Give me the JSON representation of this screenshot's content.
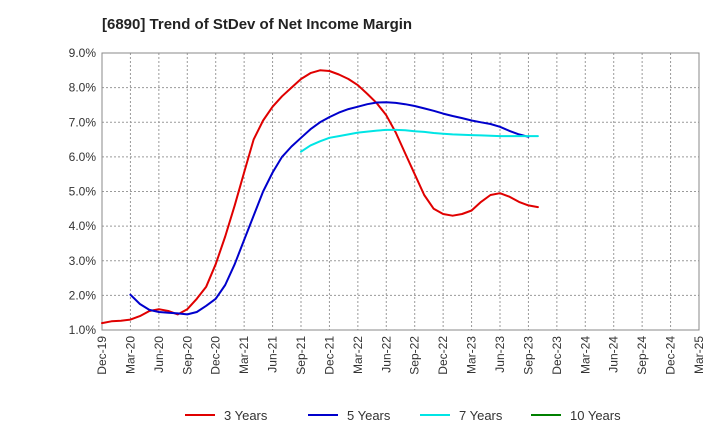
{
  "chart_data": {
    "type": "line",
    "title": "[6890]  Trend of StDev of Net Income Margin",
    "xlabel": "",
    "ylabel": "",
    "x_ticks": [
      "Dec-19",
      "Mar-20",
      "Jun-20",
      "Sep-20",
      "Dec-20",
      "Mar-21",
      "Jun-21",
      "Sep-21",
      "Dec-21",
      "Mar-22",
      "Jun-22",
      "Sep-22",
      "Dec-22",
      "Mar-23",
      "Jun-23",
      "Sep-23",
      "Dec-23",
      "Mar-24",
      "Jun-24",
      "Sep-24",
      "Dec-24",
      "Mar-25"
    ],
    "y_ticks": [
      "1.0%",
      "2.0%",
      "3.0%",
      "4.0%",
      "5.0%",
      "6.0%",
      "7.0%",
      "8.0%",
      "9.0%"
    ],
    "ylim": [
      1.0,
      9.0
    ],
    "y_unit": "%",
    "grid": true,
    "legend_position": "bottom",
    "series": [
      {
        "name": "3 Years",
        "color": "#e00000",
        "start_index": 0,
        "values": [
          1.2,
          1.25,
          1.27,
          1.3,
          1.4,
          1.55,
          1.6,
          1.55,
          1.45,
          1.6,
          1.9,
          2.25,
          2.9,
          3.7,
          4.6,
          5.55,
          6.5,
          7.05,
          7.45,
          7.75,
          8.0,
          8.25,
          8.42,
          8.5,
          8.48,
          8.38,
          8.25,
          8.07,
          7.82,
          7.55,
          7.2,
          6.7,
          6.1,
          5.5,
          4.9,
          4.5,
          4.35,
          4.3,
          4.35,
          4.45,
          4.7,
          4.9,
          4.95,
          4.85,
          4.7,
          4.6,
          4.55
        ]
      },
      {
        "name": "5 Years",
        "color": "#0000cc",
        "start_index": 3,
        "values": [
          2.02,
          1.75,
          1.58,
          1.52,
          1.5,
          1.48,
          1.45,
          1.52,
          1.7,
          1.9,
          2.3,
          2.9,
          3.6,
          4.3,
          5.0,
          5.55,
          6.0,
          6.3,
          6.55,
          6.8,
          7.0,
          7.15,
          7.28,
          7.38,
          7.45,
          7.52,
          7.57,
          7.58,
          7.56,
          7.52,
          7.47,
          7.4,
          7.33,
          7.25,
          7.18,
          7.12,
          7.05,
          7.0,
          6.95,
          6.87,
          6.75,
          6.65,
          6.58
        ]
      },
      {
        "name": "7 Years",
        "color": "#00e5e5",
        "start_index": 21,
        "values": [
          6.15,
          6.33,
          6.45,
          6.55,
          6.6,
          6.65,
          6.7,
          6.73,
          6.76,
          6.78,
          6.78,
          6.77,
          6.74,
          6.72,
          6.69,
          6.67,
          6.65,
          6.64,
          6.63,
          6.62,
          6.61,
          6.6,
          6.6,
          6.6,
          6.6,
          6.6
        ]
      },
      {
        "name": "10 Years",
        "color": "#008000",
        "start_index": 0,
        "values": []
      }
    ]
  }
}
